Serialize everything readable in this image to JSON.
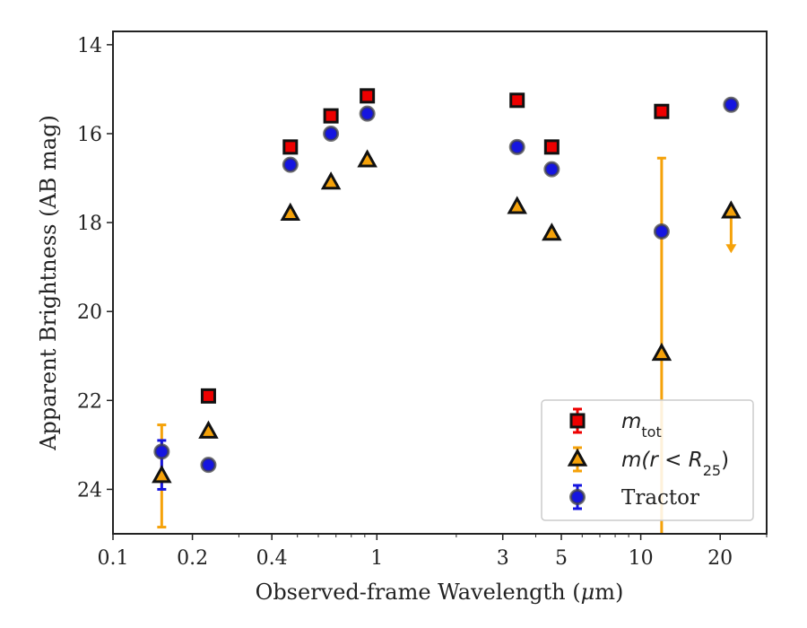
{
  "chart_data": {
    "type": "scatter",
    "xscale": "log",
    "yinverted": true,
    "xlim": [
      0.1,
      30
    ],
    "ylim": [
      25,
      13.7
    ],
    "xlabel_prefix": "Observed-frame Wavelength (",
    "xlabel_mu": "μ",
    "xlabel_suffix": "m)",
    "ylabel": "Apparent Brightness (AB mag)",
    "xticks": [
      {
        "value": 0.1,
        "label": "0.1"
      },
      {
        "value": 0.2,
        "label": "0.2"
      },
      {
        "value": 0.4,
        "label": "0.4"
      },
      {
        "value": 1,
        "label": "1"
      },
      {
        "value": 3,
        "label": "3"
      },
      {
        "value": 5,
        "label": "5"
      },
      {
        "value": 10,
        "label": "10"
      },
      {
        "value": 20,
        "label": "20"
      }
    ],
    "yticks": [
      {
        "value": 14,
        "label": "14"
      },
      {
        "value": 16,
        "label": "16"
      },
      {
        "value": 18,
        "label": "18"
      },
      {
        "value": 20,
        "label": "20"
      },
      {
        "value": 22,
        "label": "22"
      },
      {
        "value": 24,
        "label": "24"
      }
    ],
    "legend_position": "lower-right",
    "series": [
      {
        "key": "mtot",
        "marker": "square",
        "color": "#ee0000",
        "edge": "#111111",
        "errcolor": "#ee0000",
        "points": [
          {
            "x": 0.23,
            "y": 21.9
          },
          {
            "x": 0.47,
            "y": 16.3
          },
          {
            "x": 0.67,
            "y": 15.6
          },
          {
            "x": 0.92,
            "y": 15.15
          },
          {
            "x": 3.4,
            "y": 15.25
          },
          {
            "x": 4.6,
            "y": 16.3
          },
          {
            "x": 12.0,
            "y": 15.5
          }
        ]
      },
      {
        "key": "mr25",
        "marker": "triangle",
        "color": "#f5a20a",
        "edge": "#111111",
        "errcolor": "#f5a20a",
        "points": [
          {
            "x": 0.153,
            "y": 23.7,
            "yerr": [
              22.55,
              24.85
            ]
          },
          {
            "x": 0.23,
            "y": 22.7
          },
          {
            "x": 0.47,
            "y": 17.8
          },
          {
            "x": 0.67,
            "y": 17.1
          },
          {
            "x": 0.92,
            "y": 16.6
          },
          {
            "x": 3.4,
            "y": 17.65
          },
          {
            "x": 4.6,
            "y": 18.25
          },
          {
            "x": 12.0,
            "y": 20.95,
            "yerr": [
              16.55,
              25
            ]
          },
          {
            "x": 22.0,
            "y": 17.75,
            "upper_limit": 18.65
          }
        ]
      },
      {
        "key": "tractor",
        "name": "Tractor",
        "marker": "circle",
        "color": "#1515e0",
        "edge": "#444444",
        "errcolor": "#1515e0",
        "points": [
          {
            "x": 0.153,
            "y": 23.15,
            "yerr": [
              22.9,
              24.0
            ]
          },
          {
            "x": 0.23,
            "y": 23.45
          },
          {
            "x": 0.47,
            "y": 16.7
          },
          {
            "x": 0.67,
            "y": 16.0
          },
          {
            "x": 0.92,
            "y": 15.55
          },
          {
            "x": 3.4,
            "y": 16.3
          },
          {
            "x": 4.6,
            "y": 16.8
          },
          {
            "x": 12.0,
            "y": 18.2
          },
          {
            "x": 22.0,
            "y": 15.35
          }
        ]
      }
    ],
    "legend": [
      {
        "key": "mtot",
        "label_main": "m",
        "label_sub": "tot",
        "tail": ""
      },
      {
        "key": "mr25",
        "label_main": "m(r < R",
        "label_sub": "25",
        "tail": ")"
      },
      {
        "key": "tractor",
        "label_main": "Tractor",
        "label_sub": "",
        "tail": ""
      }
    ]
  }
}
